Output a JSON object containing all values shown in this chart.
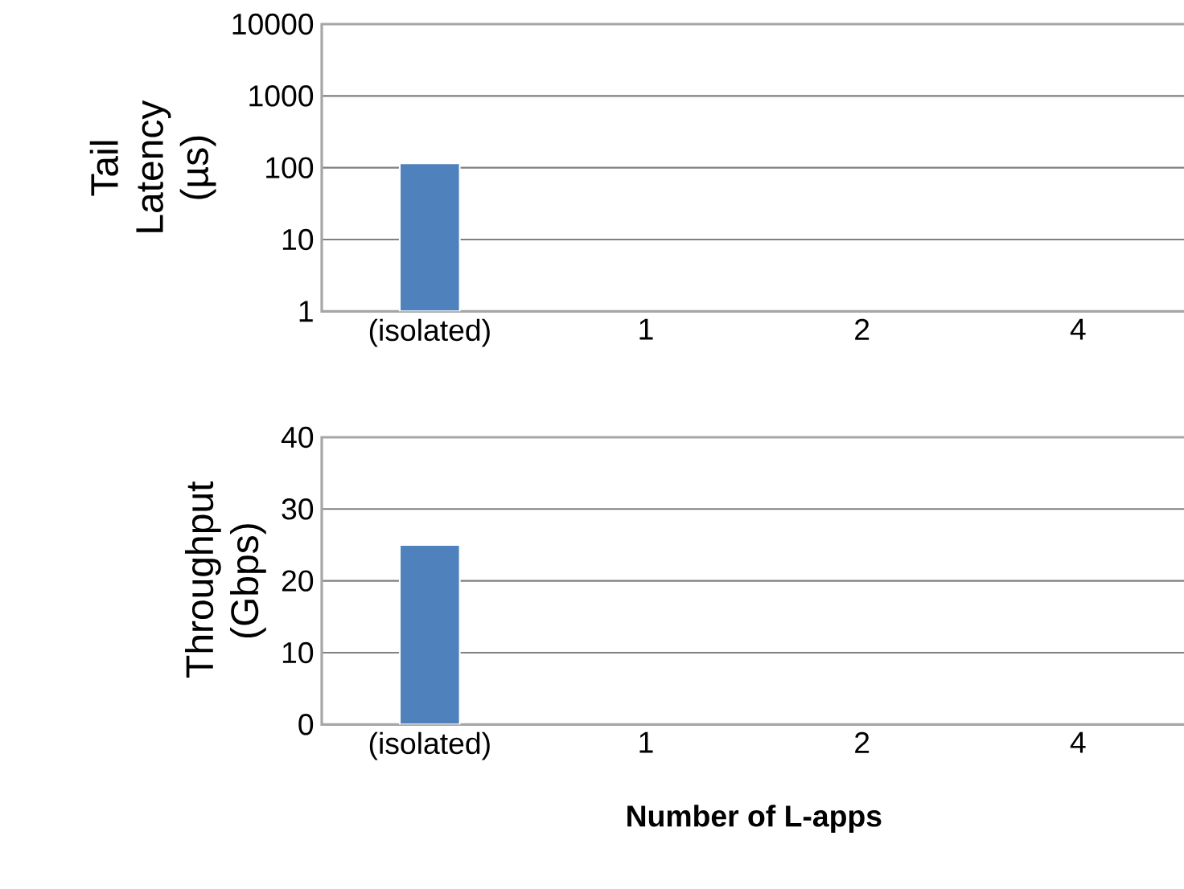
{
  "chart_data": [
    {
      "type": "bar",
      "ylabel": "Tail Latency (µs)",
      "categories": [
        "(isolated)",
        "1",
        "2",
        "4"
      ],
      "values": [
        115,
        null,
        null,
        null
      ],
      "color": "#4f81bd",
      "log": "y",
      "ylim": [
        1,
        10000
      ],
      "yticks": [
        1,
        10,
        100,
        1000,
        10000
      ],
      "grid": "y"
    },
    {
      "type": "bar",
      "ylabel": "Throughput (Gbps)",
      "xlabel": "Number of L-apps",
      "categories": [
        "(isolated)",
        "1",
        "2",
        "4"
      ],
      "values": [
        25,
        null,
        null,
        null
      ],
      "color": "#4f81bd",
      "ylim": [
        0,
        40
      ],
      "yticks": [
        0,
        10,
        20,
        30,
        40
      ],
      "grid": "y"
    }
  ]
}
